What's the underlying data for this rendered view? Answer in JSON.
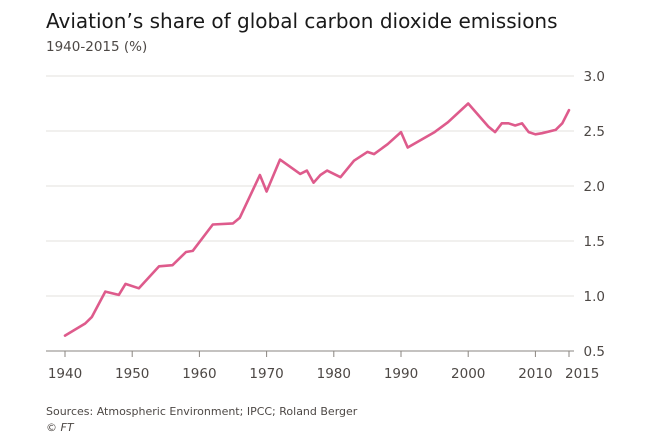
{
  "colors": {
    "line": "#de5b8c",
    "grid": "#e3e0dc",
    "axis": "#8a8580",
    "text": "#4d4845"
  },
  "chart_data": {
    "type": "line",
    "title": "Aviation’s share of global carbon dioxide emissions",
    "subtitle": "1940-2015 (%)",
    "xlabel": "",
    "ylabel": "",
    "xlim": [
      1940,
      2015
    ],
    "ylim": [
      0.5,
      3.0
    ],
    "xticks": [
      "1940",
      "1950",
      "1960",
      "1970",
      "1980",
      "1990",
      "2000",
      "2010",
      "2015"
    ],
    "yticks": [
      "0.5",
      "1.0",
      "1.5",
      "2.0",
      "2.5",
      "3.0"
    ],
    "grid": "horizontal",
    "y_axis_position": "right",
    "series": [
      {
        "x": [
          1940,
          1943,
          1944,
          1946,
          1948,
          1949,
          1951,
          1954,
          1956,
          1958,
          1959,
          1962,
          1965,
          1966,
          1969,
          1970,
          1972,
          1975,
          1976,
          1977,
          1978,
          1979,
          1981,
          1983,
          1985,
          1986,
          1988,
          1990,
          1991,
          1995,
          1997,
          2000,
          2003,
          2004,
          2005,
          2006,
          2007,
          2008,
          2009,
          2010,
          2011,
          2013,
          2014,
          2015
        ],
        "y": [
          0.64,
          0.75,
          0.81,
          1.04,
          1.01,
          1.11,
          1.07,
          1.27,
          1.28,
          1.4,
          1.41,
          1.65,
          1.66,
          1.71,
          2.1,
          1.95,
          2.24,
          2.11,
          2.14,
          2.03,
          2.1,
          2.14,
          2.08,
          2.23,
          2.31,
          2.29,
          2.38,
          2.49,
          2.35,
          2.49,
          2.58,
          2.75,
          2.54,
          2.49,
          2.57,
          2.57,
          2.55,
          2.57,
          2.49,
          2.47,
          2.48,
          2.51,
          2.57,
          2.69
        ]
      }
    ]
  },
  "footer": {
    "source": "Sources: Atmospheric Environment; IPCC; Roland Berger",
    "credit": "© FT"
  }
}
